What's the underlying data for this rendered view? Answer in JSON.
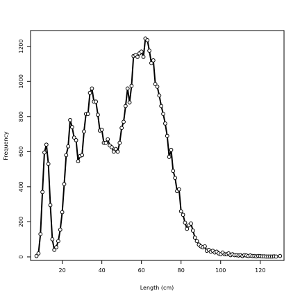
{
  "chart_data": {
    "type": "line",
    "xlabel": "Length (cm)",
    "ylabel": "Frequency",
    "xlim": [
      4,
      132
    ],
    "ylim": [
      -20,
      1290
    ],
    "xticks": [
      20,
      40,
      60,
      80,
      100,
      120
    ],
    "yticks": [
      0,
      200,
      400,
      600,
      800,
      1000,
      1200
    ],
    "grid": false,
    "legend": "none",
    "marker": "open-circle",
    "colors": {
      "line": "#000000",
      "axis": "#000000",
      "background": "#ffffff"
    },
    "x": [
      7,
      8,
      9,
      10,
      11,
      12,
      13,
      14,
      15,
      16,
      17,
      18,
      19,
      20,
      21,
      22,
      23,
      24,
      25,
      26,
      27,
      28,
      29,
      30,
      31,
      32,
      33,
      34,
      35,
      36,
      37,
      38,
      39,
      40,
      41,
      42,
      43,
      44,
      45,
      46,
      47,
      48,
      49,
      50,
      51,
      52,
      53,
      54,
      55,
      56,
      57,
      58,
      59,
      60,
      61,
      62,
      63,
      64,
      65,
      66,
      67,
      68,
      69,
      70,
      71,
      72,
      73,
      74,
      75,
      76,
      77,
      78,
      79,
      80,
      81,
      82,
      83,
      84,
      85,
      86,
      87,
      88,
      89,
      90,
      91,
      92,
      93,
      94,
      95,
      96,
      97,
      98,
      99,
      100,
      101,
      102,
      103,
      104,
      105,
      106,
      107,
      108,
      109,
      110,
      111,
      112,
      113,
      114,
      115,
      116,
      117,
      118,
      119,
      120,
      121,
      122,
      123,
      124,
      125,
      126,
      127,
      128,
      130
    ],
    "y": [
      5,
      20,
      130,
      370,
      595,
      640,
      530,
      295,
      100,
      40,
      55,
      90,
      155,
      255,
      415,
      580,
      630,
      780,
      740,
      680,
      665,
      545,
      575,
      580,
      715,
      815,
      815,
      935,
      960,
      885,
      885,
      810,
      720,
      725,
      650,
      650,
      670,
      635,
      625,
      600,
      615,
      600,
      650,
      735,
      770,
      860,
      960,
      880,
      975,
      1145,
      1150,
      1140,
      1160,
      1170,
      1140,
      1245,
      1235,
      1175,
      1105,
      1120,
      985,
      970,
      920,
      860,
      815,
      760,
      690,
      570,
      610,
      490,
      450,
      375,
      385,
      260,
      240,
      195,
      160,
      180,
      190,
      150,
      110,
      90,
      70,
      60,
      55,
      60,
      35,
      40,
      30,
      35,
      25,
      30,
      20,
      15,
      25,
      15,
      15,
      20,
      10,
      15,
      10,
      10,
      8,
      10,
      5,
      10,
      8,
      5,
      8,
      5,
      5,
      3,
      5,
      4,
      3,
      3,
      2,
      2,
      2,
      2,
      3,
      2,
      5
    ]
  }
}
